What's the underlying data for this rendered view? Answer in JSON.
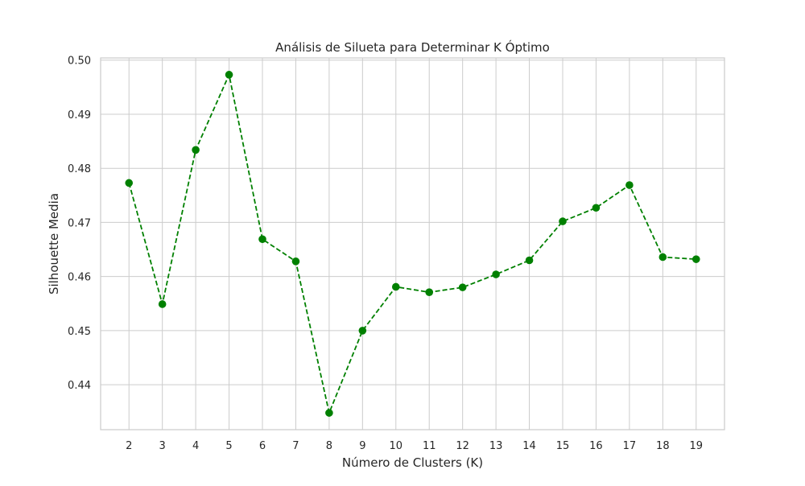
{
  "chart_data": {
    "type": "line",
    "title": "Análisis de Silueta para Determinar K Óptimo",
    "xlabel": "Número de Clusters (K)",
    "ylabel": "Silhouette Media",
    "x": [
      2,
      3,
      4,
      5,
      6,
      7,
      8,
      9,
      10,
      11,
      12,
      13,
      14,
      15,
      16,
      17,
      18,
      19
    ],
    "series": [
      {
        "values": [
          0.4773,
          0.4549,
          0.4834,
          0.4973,
          0.4669,
          0.4628,
          0.4348,
          0.45,
          0.4581,
          0.4571,
          0.458,
          0.4604,
          0.463,
          0.4702,
          0.4727,
          0.4769,
          0.4636,
          0.4632
        ],
        "line_style": "dashed",
        "marker": "circle"
      }
    ],
    "xticks": [
      2,
      3,
      4,
      5,
      6,
      7,
      8,
      9,
      10,
      11,
      12,
      13,
      14,
      15,
      16,
      17,
      18,
      19
    ],
    "yticks": [
      0.44,
      0.45,
      0.46,
      0.47,
      0.48,
      0.49,
      0.5
    ],
    "ytick_labels": [
      "0.44",
      "0.45",
      "0.46",
      "0.47",
      "0.48",
      "0.49",
      "0.50"
    ],
    "xlim": [
      1.15,
      19.85
    ],
    "ylim": [
      0.4317,
      0.5004
    ],
    "grid": true,
    "colors": {
      "line": "#008000",
      "grid": "#cccccc",
      "spine": "#cccccc",
      "text": "#262626"
    }
  }
}
